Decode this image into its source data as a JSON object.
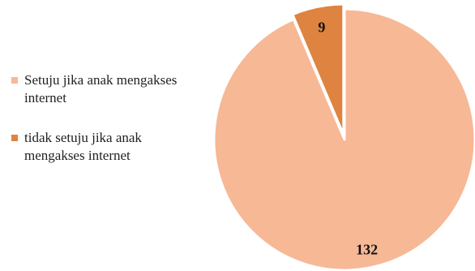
{
  "chart_data": {
    "type": "pie",
    "title": "",
    "categories": [
      "Setuju jika anak mengakses internet",
      "tidak setuju jika anak mengakses internet"
    ],
    "values": [
      132,
      9
    ],
    "data_labels": [
      "132",
      "9"
    ],
    "colors": [
      "#F7B896",
      "#DE8440"
    ],
    "legend_position": "left"
  }
}
